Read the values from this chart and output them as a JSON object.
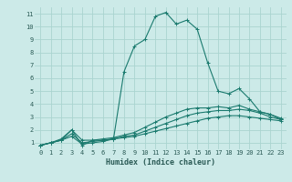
{
  "xlabel": "Humidex (Indice chaleur)",
  "bg_color": "#cceae8",
  "line_color": "#1a7a6e",
  "grid_color": "#aad4d0",
  "tick_color": "#2a5a55",
  "xlim": [
    -0.5,
    23.5
  ],
  "ylim": [
    0.5,
    11.5
  ],
  "xticks": [
    0,
    1,
    2,
    3,
    4,
    5,
    6,
    7,
    8,
    9,
    10,
    11,
    12,
    13,
    14,
    15,
    16,
    17,
    18,
    19,
    20,
    21,
    22,
    23
  ],
  "yticks": [
    1,
    2,
    3,
    4,
    5,
    6,
    7,
    8,
    9,
    10,
    11
  ],
  "lines": [
    {
      "x": [
        0,
        1,
        2,
        3,
        4,
        5,
        6,
        7,
        8,
        9,
        10,
        11,
        12,
        13,
        14,
        15,
        16,
        17,
        18,
        19,
        20,
        21,
        22,
        23
      ],
      "y": [
        0.8,
        1.0,
        1.3,
        2.0,
        0.8,
        1.2,
        1.2,
        1.3,
        6.5,
        8.5,
        9.0,
        10.8,
        11.1,
        10.2,
        10.5,
        9.8,
        7.2,
        5.0,
        4.8,
        5.2,
        4.4,
        3.4,
        3.2,
        2.8
      ]
    },
    {
      "x": [
        0,
        1,
        2,
        3,
        4,
        5,
        6,
        7,
        8,
        9,
        10,
        11,
        12,
        13,
        14,
        15,
        16,
        17,
        18,
        19,
        20,
        21,
        22,
        23
      ],
      "y": [
        0.8,
        1.0,
        1.2,
        2.0,
        1.2,
        1.2,
        1.3,
        1.4,
        1.6,
        1.8,
        2.2,
        2.6,
        3.0,
        3.3,
        3.6,
        3.7,
        3.7,
        3.8,
        3.7,
        3.9,
        3.6,
        3.4,
        3.2,
        2.9
      ]
    },
    {
      "x": [
        0,
        1,
        2,
        3,
        4,
        5,
        6,
        7,
        8,
        9,
        10,
        11,
        12,
        13,
        14,
        15,
        16,
        17,
        18,
        19,
        20,
        21,
        22,
        23
      ],
      "y": [
        0.8,
        1.0,
        1.2,
        1.7,
        1.0,
        1.1,
        1.2,
        1.3,
        1.5,
        1.6,
        1.9,
        2.2,
        2.5,
        2.8,
        3.1,
        3.3,
        3.4,
        3.5,
        3.5,
        3.6,
        3.5,
        3.3,
        3.0,
        2.8
      ]
    },
    {
      "x": [
        0,
        1,
        2,
        3,
        4,
        5,
        6,
        7,
        8,
        9,
        10,
        11,
        12,
        13,
        14,
        15,
        16,
        17,
        18,
        19,
        20,
        21,
        22,
        23
      ],
      "y": [
        0.8,
        1.0,
        1.2,
        1.5,
        0.9,
        1.0,
        1.1,
        1.3,
        1.4,
        1.5,
        1.7,
        1.9,
        2.1,
        2.3,
        2.5,
        2.7,
        2.9,
        3.0,
        3.1,
        3.1,
        3.0,
        2.9,
        2.8,
        2.7
      ]
    }
  ]
}
